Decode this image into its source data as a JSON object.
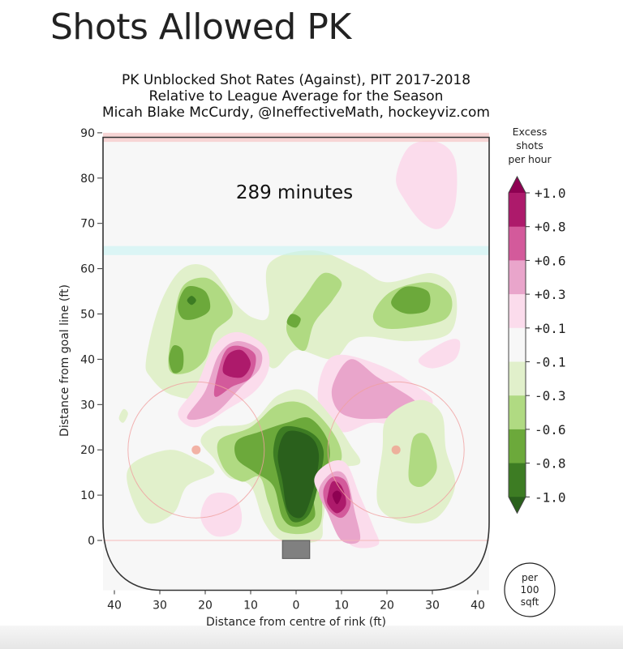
{
  "page": {
    "title": "Shots Allowed PK"
  },
  "chart_data": {
    "type": "heatmap",
    "title_lines": [
      "PK Unblocked Shot Rates (Against), PIT 2017-2018",
      "Relative to League Average for the Season",
      "Micah Blake McCurdy, @IneffectiveMath, hockeyviz.com"
    ],
    "annotation": "289 minutes",
    "xlabel": "Distance from centre of rink (ft)",
    "ylabel": "Distance from goal line (ft)",
    "xlim": [
      -42.5,
      42.5
    ],
    "ylim": [
      -11,
      90
    ],
    "xticks": [
      -40,
      -30,
      -20,
      -10,
      0,
      10,
      20,
      30,
      40
    ],
    "xtick_labels": [
      "40",
      "30",
      "20",
      "10",
      "0",
      "10",
      "20",
      "30",
      "40"
    ],
    "yticks": [
      0,
      10,
      20,
      30,
      40,
      50,
      60,
      70,
      80,
      90
    ],
    "ytick_labels": [
      "0",
      "10",
      "20",
      "30",
      "40",
      "50",
      "60",
      "70",
      "80",
      "90"
    ],
    "colorbar": {
      "title_lines": [
        "Excess",
        "shots",
        "per hour"
      ],
      "tick_labels": [
        "+1.0",
        "+0.8",
        "+0.6",
        "+0.3",
        "+0.1",
        "-0.1",
        "-0.3",
        "-0.6",
        "-0.8",
        "-1.0"
      ],
      "level_colors": {
        "over": "#8e0152",
        "0.8": "#ad1a6b",
        "0.6": "#d35a9b",
        "0.3": "#e9a5cb",
        "0.1": "#fbdcec",
        "0": "#f7f7f7",
        "-0.1": "#e1f0cb",
        "-0.3": "#b0da82",
        "-0.6": "#6ca93b",
        "-0.8": "#3d7c23",
        "under": "#2a601c"
      },
      "band_order": [
        "0.8",
        "0.6",
        "0.3",
        "0.1",
        "0",
        "-0.1",
        "-0.3",
        "-0.6",
        "-0.8"
      ],
      "units_lines": [
        "per",
        "100",
        "sqft"
      ]
    },
    "rink": {
      "blue_line_ft": 64,
      "far_line_ft": 89,
      "goal_line_ft": 0,
      "faceoff_dots": [
        [
          -22,
          20
        ],
        [
          22,
          20
        ]
      ],
      "faceoff_radius_ft": 15
    },
    "regions": [
      {
        "level": "0.1",
        "pts": [
          [
            22,
            80
          ],
          [
            25,
            87
          ],
          [
            31,
            88
          ],
          [
            35,
            84
          ],
          [
            35,
            74
          ],
          [
            32,
            69
          ],
          [
            28,
            70
          ],
          [
            24,
            75
          ]
        ]
      },
      {
        "level": "0.1",
        "pts": [
          [
            27,
            40
          ],
          [
            33,
            44
          ],
          [
            36,
            44
          ],
          [
            35,
            40
          ],
          [
            30,
            38
          ]
        ]
      },
      {
        "level": "-0.1",
        "pts": [
          [
            -33,
            40
          ],
          [
            -30,
            52
          ],
          [
            -25,
            60
          ],
          [
            -19,
            60
          ],
          [
            -13,
            52
          ],
          [
            -9,
            49
          ],
          [
            -6,
            50
          ],
          [
            -6,
            61
          ],
          [
            4,
            64
          ],
          [
            14,
            60
          ],
          [
            20,
            57
          ],
          [
            30,
            59
          ],
          [
            35,
            55
          ],
          [
            34,
            46
          ],
          [
            25,
            44
          ],
          [
            16,
            45
          ],
          [
            12,
            44
          ],
          [
            8,
            40
          ],
          [
            0,
            42
          ],
          [
            -5,
            38
          ],
          [
            -10,
            42
          ],
          [
            -18,
            32
          ],
          [
            -27,
            32
          ],
          [
            -32,
            36
          ]
        ]
      },
      {
        "level": "-0.3",
        "pts": [
          [
            -27,
            48
          ],
          [
            -25,
            56
          ],
          [
            -20,
            58
          ],
          [
            -16,
            55
          ],
          [
            -14,
            50
          ],
          [
            -18,
            46
          ],
          [
            -20,
            40
          ],
          [
            -24,
            37
          ],
          [
            -28,
            38
          ]
        ]
      },
      {
        "level": "-0.3",
        "pts": [
          [
            -2,
            48
          ],
          [
            2,
            54
          ],
          [
            6,
            59
          ],
          [
            10,
            57
          ],
          [
            8,
            53
          ],
          [
            4,
            48
          ],
          [
            2,
            42
          ],
          [
            -1,
            44
          ]
        ]
      },
      {
        "level": "-0.3",
        "pts": [
          [
            17,
            50
          ],
          [
            21,
            55
          ],
          [
            29,
            57
          ],
          [
            34,
            54
          ],
          [
            33,
            49
          ],
          [
            25,
            47
          ],
          [
            19,
            47
          ]
        ]
      },
      {
        "level": "-0.6",
        "pts": [
          [
            -26,
            52
          ],
          [
            -24,
            56
          ],
          [
            -20,
            55
          ],
          [
            -19,
            51
          ],
          [
            -22,
            49
          ],
          [
            -25,
            49
          ]
        ]
      },
      {
        "level": "-0.6",
        "pts": [
          [
            -28,
            40
          ],
          [
            -27,
            43
          ],
          [
            -25,
            42
          ],
          [
            -25,
            38
          ],
          [
            -27,
            37
          ]
        ]
      },
      {
        "level": "-0.6",
        "pts": [
          [
            -2,
            48
          ],
          [
            -1,
            50
          ],
          [
            1,
            49
          ],
          [
            0,
            47
          ]
        ]
      },
      {
        "level": "-0.6",
        "pts": [
          [
            21,
            53
          ],
          [
            24,
            56
          ],
          [
            29,
            55
          ],
          [
            29,
            51
          ],
          [
            25,
            50
          ],
          [
            22,
            51
          ]
        ]
      },
      {
        "level": "-0.8",
        "pts": [
          [
            -24,
            53
          ],
          [
            -23,
            54
          ],
          [
            -22,
            53
          ],
          [
            -23,
            52
          ]
        ]
      },
      {
        "level": "0.1",
        "pts": [
          [
            -26,
            28
          ],
          [
            -22,
            34
          ],
          [
            -18,
            43
          ],
          [
            -13,
            46
          ],
          [
            -7,
            43
          ],
          [
            -6,
            38
          ],
          [
            -9,
            33
          ],
          [
            -15,
            29
          ],
          [
            -22,
            25
          ]
        ]
      },
      {
        "level": "0.3",
        "pts": [
          [
            -24,
            27
          ],
          [
            -20,
            33
          ],
          [
            -17,
            41
          ],
          [
            -13,
            44
          ],
          [
            -8,
            42
          ],
          [
            -8,
            38
          ],
          [
            -12,
            34
          ],
          [
            -18,
            28
          ]
        ]
      },
      {
        "level": "0.6",
        "pts": [
          [
            -18,
            32
          ],
          [
            -16,
            41
          ],
          [
            -13,
            43
          ],
          [
            -9,
            41
          ],
          [
            -10,
            36
          ],
          [
            -14,
            34
          ]
        ]
      },
      {
        "level": "0.8",
        "pts": [
          [
            -16,
            37
          ],
          [
            -15,
            41
          ],
          [
            -12,
            42
          ],
          [
            -10,
            39
          ],
          [
            -12,
            36
          ]
        ]
      },
      {
        "level": "0.1",
        "pts": [
          [
            6,
            38
          ],
          [
            10,
            41
          ],
          [
            20,
            38
          ],
          [
            28,
            33
          ],
          [
            30,
            30
          ],
          [
            26,
            25
          ],
          [
            17,
            26
          ],
          [
            10,
            24
          ],
          [
            5,
            30
          ]
        ]
      },
      {
        "level": "0.3",
        "pts": [
          [
            8,
            34
          ],
          [
            12,
            40
          ],
          [
            18,
            36
          ],
          [
            26,
            31
          ],
          [
            27,
            28
          ],
          [
            20,
            27
          ],
          [
            13,
            27
          ],
          [
            9,
            29
          ]
        ]
      },
      {
        "level": "-0.1",
        "pts": [
          [
            -18,
            18
          ],
          [
            -21,
            22
          ],
          [
            -18,
            25
          ],
          [
            -10,
            26
          ],
          [
            -4,
            32
          ],
          [
            2,
            33
          ],
          [
            8,
            27
          ],
          [
            12,
            21
          ],
          [
            14,
            17
          ],
          [
            8,
            15
          ],
          [
            6,
            5
          ],
          [
            5,
            0
          ],
          [
            -3,
            0
          ],
          [
            -7,
            4
          ],
          [
            -10,
            12
          ],
          [
            -15,
            14
          ]
        ]
      },
      {
        "level": "-0.3",
        "pts": [
          [
            -16,
            16
          ],
          [
            -17,
            22
          ],
          [
            -10,
            25
          ],
          [
            -4,
            30
          ],
          [
            2,
            30
          ],
          [
            8,
            24
          ],
          [
            10,
            18
          ],
          [
            6,
            14
          ],
          [
            5,
            3
          ],
          [
            -3,
            2
          ],
          [
            -6,
            8
          ],
          [
            -8,
            14
          ],
          [
            -12,
            13
          ]
        ]
      },
      {
        "level": "-0.6",
        "pts": [
          [
            -13,
            18
          ],
          [
            -13,
            22
          ],
          [
            -8,
            24
          ],
          [
            -2,
            26
          ],
          [
            3,
            27
          ],
          [
            7,
            22
          ],
          [
            7,
            16
          ],
          [
            4,
            10
          ],
          [
            4,
            5
          ],
          [
            0,
            3
          ],
          [
            -3,
            5
          ],
          [
            -5,
            12
          ],
          [
            -9,
            15
          ]
        ]
      },
      {
        "level": "-0.8",
        "pts": [
          [
            -5,
            20
          ],
          [
            -3,
            25
          ],
          [
            3,
            24
          ],
          [
            6,
            20
          ],
          [
            5,
            13
          ],
          [
            3,
            6
          ],
          [
            0,
            4
          ],
          [
            -2,
            6
          ],
          [
            -4,
            14
          ]
        ]
      },
      {
        "level": "-1.0",
        "pts": [
          [
            -4,
            19
          ],
          [
            -2,
            24
          ],
          [
            3,
            23
          ],
          [
            5,
            19
          ],
          [
            4,
            12
          ],
          [
            2,
            6
          ],
          [
            0,
            5
          ],
          [
            -2,
            7
          ],
          [
            -3,
            13
          ]
        ]
      },
      {
        "level": "0.1",
        "pts": [
          [
            4,
            13
          ],
          [
            7,
            17
          ],
          [
            11,
            17
          ],
          [
            14,
            10
          ],
          [
            17,
            3
          ],
          [
            18,
            -1
          ],
          [
            12,
            -1
          ],
          [
            8,
            6
          ]
        ]
      },
      {
        "level": "0.3",
        "pts": [
          [
            5,
            11
          ],
          [
            8,
            15
          ],
          [
            11,
            14
          ],
          [
            13,
            6
          ],
          [
            14,
            0
          ],
          [
            10,
            0
          ],
          [
            7,
            6
          ]
        ]
      },
      {
        "level": "0.6",
        "pts": [
          [
            6,
            11
          ],
          [
            8,
            14
          ],
          [
            11,
            13
          ],
          [
            12,
            8
          ],
          [
            10,
            5
          ],
          [
            7,
            7
          ]
        ]
      },
      {
        "level": "0.8",
        "pts": [
          [
            7,
            10
          ],
          [
            8,
            13
          ],
          [
            10,
            12
          ],
          [
            11,
            8
          ],
          [
            9,
            6
          ],
          [
            7,
            8
          ]
        ]
      },
      {
        "level": "1.0",
        "pts": [
          [
            8,
            10
          ],
          [
            9,
            11
          ],
          [
            10,
            10
          ],
          [
            9,
            8
          ]
        ]
      },
      {
        "level": "-0.1",
        "pts": [
          [
            19,
            20
          ],
          [
            20,
            27
          ],
          [
            27,
            31
          ],
          [
            32,
            28
          ],
          [
            33,
            20
          ],
          [
            35,
            12
          ],
          [
            31,
            5
          ],
          [
            24,
            4
          ],
          [
            18,
            8
          ]
        ]
      },
      {
        "level": "-0.3",
        "pts": [
          [
            25,
            18
          ],
          [
            26,
            23
          ],
          [
            29,
            23
          ],
          [
            31,
            16
          ],
          [
            28,
            12
          ],
          [
            25,
            13
          ]
        ]
      },
      {
        "level": "-0.1",
        "pts": [
          [
            -37,
            12
          ],
          [
            -36,
            17
          ],
          [
            -28,
            20
          ],
          [
            -22,
            18
          ],
          [
            -18,
            15
          ],
          [
            -24,
            12
          ],
          [
            -27,
            6
          ],
          [
            -33,
            4
          ]
        ]
      },
      {
        "level": "0.1",
        "pts": [
          [
            -21,
            5
          ],
          [
            -19,
            10
          ],
          [
            -14,
            10
          ],
          [
            -12,
            6
          ],
          [
            -13,
            2
          ],
          [
            -18,
            1
          ]
        ]
      },
      {
        "level": "-0.1",
        "pts": [
          [
            -39,
            27
          ],
          [
            -38,
            29
          ],
          [
            -37,
            28
          ],
          [
            -38,
            26
          ]
        ]
      }
    ]
  }
}
